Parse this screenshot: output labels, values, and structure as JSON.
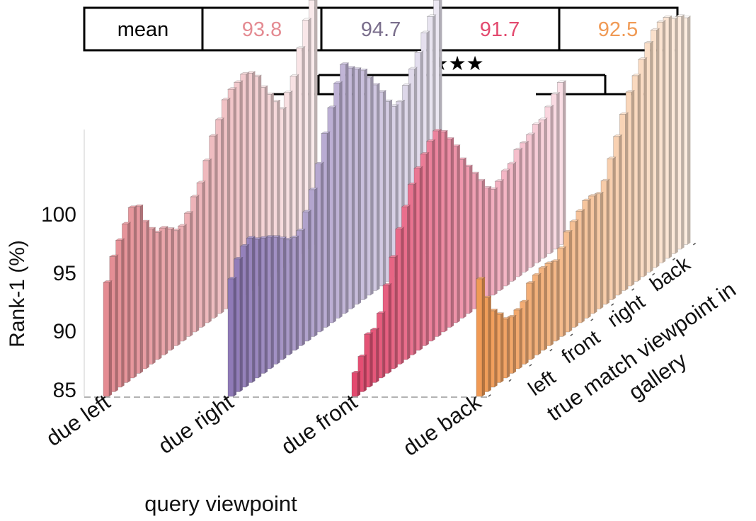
{
  "mean_table": {
    "header": "mean",
    "values": [
      "93.8",
      "94.7",
      "91.7",
      "92.5"
    ]
  },
  "significance": "★★★",
  "chart_data": {
    "type": "bar",
    "ylabel": "Rank-1 (%)",
    "xlabel": "query viewpoint",
    "depth_label_line1": "true match viewpoint in",
    "depth_label_line2": "gallery",
    "yticks": [
      "85",
      "90",
      "95",
      "100"
    ],
    "ylim": [
      84.5,
      107.5
    ],
    "query_viewpoints": [
      "due left",
      "due right",
      "due front",
      "due back"
    ],
    "gallery_viewpoints": [
      "left",
      "front",
      "right",
      "back"
    ],
    "series": [
      {
        "name": "due left",
        "color": "#e48b92",
        "mean": "93.8",
        "values": [
          94.7,
          96.5,
          97.5,
          98.5,
          99.5,
          99.2,
          97.5,
          96.5,
          95.8,
          95.8,
          95.3,
          94.8,
          94.8,
          95.5,
          96.5,
          97.3,
          98.8,
          100.5,
          101.5,
          102.8,
          103.3,
          103.5,
          103.8,
          103.5,
          102.8,
          101.5,
          100.5,
          99.5,
          98.5,
          99.5,
          100.5,
          102.5,
          104.5,
          105.8
        ]
      },
      {
        "name": "due right",
        "color": "#8f7ab7",
        "mean": "94.7",
        "values": [
          95.0,
          96.3,
          97.0,
          97.3,
          96.8,
          96.5,
          96.2,
          95.8,
          95.3,
          94.8,
          94.6,
          94.8,
          96.0,
          97.5,
          99.3,
          101.5,
          103.3,
          105.0,
          106.2,
          105.5,
          105.0,
          104.5,
          103.5,
          102.5,
          101.5,
          100.3,
          99.5,
          99.5,
          100.5,
          101.5,
          102.5,
          103.8,
          104.8,
          105.8
        ]
      },
      {
        "name": "due front",
        "color": "#e34a6f",
        "mean": "91.7",
        "values": [
          87.0,
          88.0,
          89.5,
          89.5,
          90.5,
          92.5,
          94.5,
          96.5,
          98.0,
          99.5,
          100.5,
          101.3,
          102.0,
          102.5,
          102.0,
          101.0,
          100.0,
          98.5,
          97.5,
          96.5,
          95.5,
          94.5,
          94.0,
          94.3,
          94.8,
          95.0,
          95.8,
          96.0,
          96.3,
          96.8,
          96.8,
          97.5,
          98.2,
          98.8
        ]
      },
      {
        "name": "due back",
        "color": "#f09a55",
        "mean": "92.5",
        "values": [
          95.0,
          93.0,
          91.5,
          90.8,
          90.0,
          89.8,
          90.0,
          90.3,
          91.5,
          91.8,
          92.0,
          92.0,
          91.8,
          92.5,
          93.5,
          94.0,
          94.5,
          95.0,
          95.0,
          94.8,
          95.5,
          97.0,
          98.5,
          100.0,
          101.5,
          102.5,
          103.5,
          104.5,
          105.2,
          105.5,
          105.5,
          105.0,
          104.8,
          104.3
        ]
      }
    ]
  }
}
